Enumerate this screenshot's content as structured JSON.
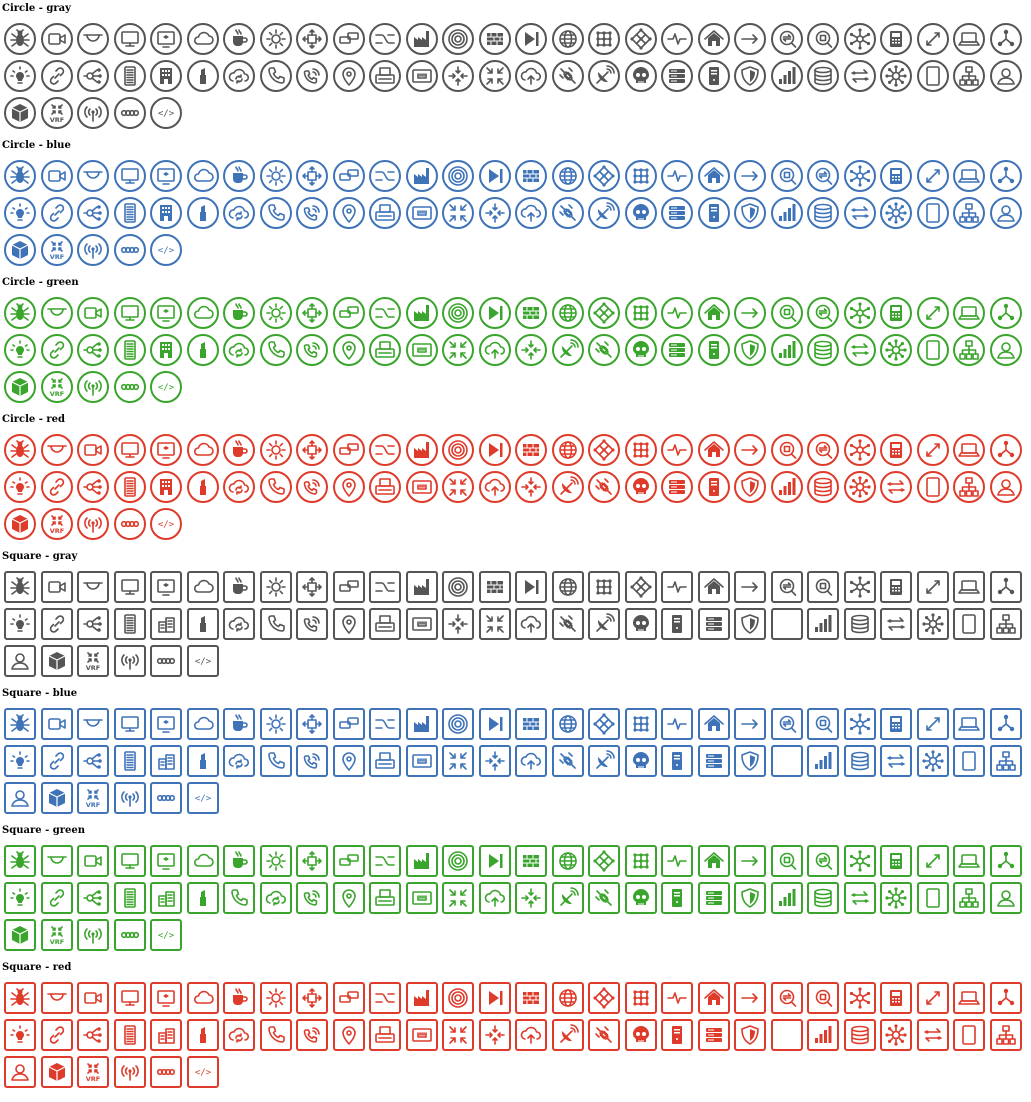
{
  "colors": {
    "gray": "#555555",
    "blue": "#3f73b8",
    "green": "#3aa52c",
    "red": "#de3b2b"
  },
  "sections": [
    {
      "title": "Circle - gray",
      "shape": "circle",
      "color": "gray",
      "icons": [
        "bug-icon",
        "video-camera-icon",
        "ceiling-dome-icon",
        "monitor-icon",
        "display-screen-icon",
        "cloud-icon",
        "coffee-cup-icon",
        "gear-icon",
        "arrows-out-icon",
        "chat-bubbles-icon",
        "crossover-icon",
        "factory-icon",
        "target-rings-icon",
        "firewall-icon",
        "play-next-icon",
        "globe-icon",
        "grid-nodes-icon",
        "diamond-nodes-icon",
        "pulse-icon",
        "home-icon",
        "arrow-right-icon",
        "exchange-icon",
        "focus-square-icon",
        "hub-icon",
        "phone-desk-icon",
        "diagonal-arrows-icon",
        "laptop-icon",
        "tri-nodes-icon",
        "lightbulb-icon",
        "link-icon",
        "share-nodes-icon",
        "server-rack-icon",
        "building-icon",
        "lipstick-icon",
        "cloud-sync-icon",
        "phone-icon",
        "wifi-phone-icon",
        "map-pin-icon",
        "printer-icon",
        "patch-panel-icon",
        "arrows-in-icon",
        "compress-icon",
        "cloud-upload-icon",
        "satellite-icon",
        "satellite-dish-icon",
        "skull-icon",
        "server-stack-icon",
        "tower-server-icon",
        "shield-icon",
        "signal-bars-icon",
        "database-icon",
        "swap-arrows-icon",
        "network-star-icon",
        "tablet-icon",
        "org-chart-icon",
        "user-icon",
        "cube-icon",
        "vrf-icon",
        "radio-tower-icon",
        "chain-icon",
        "code-icon"
      ]
    },
    {
      "title": "Circle - blue",
      "shape": "circle",
      "color": "blue",
      "icons": [
        "bug-icon",
        "video-camera-icon",
        "ceiling-dome-icon",
        "monitor-icon",
        "display-screen-icon",
        "cloud-icon",
        "coffee-cup-icon",
        "gear-icon",
        "arrows-out-icon",
        "chat-bubbles-icon",
        "crossover-icon",
        "factory-icon",
        "target-rings-icon",
        "play-next-icon",
        "firewall-icon",
        "globe-icon",
        "diamond-nodes-icon",
        "grid-nodes-icon",
        "pulse-icon",
        "home-icon",
        "arrow-right-icon",
        "focus-square-icon",
        "exchange-icon",
        "hub-icon",
        "phone-desk-icon",
        "diagonal-arrows-icon",
        "laptop-icon",
        "tri-nodes-icon",
        "lightbulb-icon",
        "link-icon",
        "share-nodes-icon",
        "server-rack-icon",
        "building-icon",
        "lipstick-icon",
        "cloud-sync-icon",
        "phone-icon",
        "wifi-phone-icon",
        "map-pin-icon",
        "printer-icon",
        "patch-panel-icon",
        "compress-icon",
        "arrows-in-icon",
        "cloud-upload-icon",
        "satellite-icon",
        "satellite-dish-icon",
        "skull-icon",
        "server-stack-icon",
        "tower-server-icon",
        "shield-icon",
        "signal-bars-icon",
        "database-icon",
        "swap-arrows-icon",
        "network-star-icon",
        "tablet-icon",
        "org-chart-icon",
        "user-icon",
        "cube-icon",
        "vrf-icon",
        "radio-tower-icon",
        "chain-icon",
        "code-icon"
      ]
    },
    {
      "title": "Circle - green",
      "shape": "circle",
      "color": "green",
      "icons": [
        "bug-icon",
        "ceiling-dome-icon",
        "video-camera-icon",
        "monitor-icon",
        "display-screen-icon",
        "cloud-icon",
        "coffee-cup-icon",
        "gear-icon",
        "arrows-out-icon",
        "chat-bubbles-icon",
        "crossover-icon",
        "factory-icon",
        "target-rings-icon",
        "play-next-icon",
        "firewall-icon",
        "globe-icon",
        "diamond-nodes-icon",
        "grid-nodes-icon",
        "pulse-icon",
        "home-icon",
        "arrow-right-icon",
        "focus-square-icon",
        "exchange-icon",
        "hub-icon",
        "phone-desk-icon",
        "diagonal-arrows-icon",
        "laptop-icon",
        "tri-nodes-icon",
        "lightbulb-icon",
        "link-icon",
        "share-nodes-icon",
        "server-rack-icon",
        "building-icon",
        "lipstick-icon",
        "cloud-sync-icon",
        "phone-icon",
        "wifi-phone-icon",
        "map-pin-icon",
        "printer-icon",
        "patch-panel-icon",
        "compress-icon",
        "cloud-upload-icon",
        "arrows-in-icon",
        "satellite-dish-icon",
        "satellite-icon",
        "skull-icon",
        "server-stack-icon",
        "tower-server-icon",
        "shield-icon",
        "signal-bars-icon",
        "database-icon",
        "swap-arrows-icon",
        "network-star-icon",
        "tablet-icon",
        "org-chart-icon",
        "user-icon",
        "cube-icon",
        "vrf-icon",
        "radio-tower-icon",
        "chain-icon",
        "code-icon"
      ]
    },
    {
      "title": "Circle - red",
      "shape": "circle",
      "color": "red",
      "icons": [
        "bug-icon",
        "ceiling-dome-icon",
        "video-camera-icon",
        "monitor-icon",
        "display-screen-icon",
        "cloud-icon",
        "coffee-cup-icon",
        "gear-icon",
        "arrows-out-icon",
        "chat-bubbles-icon",
        "crossover-icon",
        "factory-icon",
        "target-rings-icon",
        "play-next-icon",
        "firewall-icon",
        "globe-icon",
        "diamond-nodes-icon",
        "grid-nodes-icon",
        "pulse-icon",
        "home-icon",
        "arrow-right-icon",
        "focus-square-icon",
        "exchange-icon",
        "hub-icon",
        "phone-desk-icon",
        "diagonal-arrows-icon",
        "laptop-icon",
        "tri-nodes-icon",
        "lightbulb-icon",
        "link-icon",
        "share-nodes-icon",
        "server-rack-icon",
        "building-icon",
        "lipstick-icon",
        "cloud-sync-icon",
        "phone-icon",
        "wifi-phone-icon",
        "map-pin-icon",
        "printer-icon",
        "patch-panel-icon",
        "compress-icon",
        "cloud-upload-icon",
        "arrows-in-icon",
        "satellite-dish-icon",
        "satellite-icon",
        "skull-icon",
        "server-stack-icon",
        "tower-server-icon",
        "shield-icon",
        "signal-bars-icon",
        "database-icon",
        "network-star-icon",
        "swap-arrows-icon",
        "tablet-icon",
        "org-chart-icon",
        "user-icon",
        "cube-icon",
        "vrf-icon",
        "radio-tower-icon",
        "chain-icon",
        "code-icon"
      ]
    },
    {
      "title": "Square - gray",
      "shape": "square",
      "color": "gray",
      "icons": [
        "bug-icon",
        "video-camera-icon",
        "ceiling-dome-icon",
        "monitor-icon",
        "display-screen-icon",
        "cloud-icon",
        "coffee-cup-icon",
        "gear-icon",
        "arrows-out-icon",
        "chat-bubbles-icon",
        "crossover-icon",
        "factory-icon",
        "target-rings-icon",
        "firewall-icon",
        "play-next-icon",
        "globe-icon",
        "grid-nodes-icon",
        "diamond-nodes-icon",
        "pulse-icon",
        "home-icon",
        "arrow-right-icon",
        "exchange-icon",
        "focus-square-icon",
        "hub-icon",
        "phone-desk-icon",
        "diagonal-arrows-icon",
        "laptop-icon",
        "tri-nodes-icon",
        "lightbulb-icon",
        "link-icon",
        "share-nodes-icon",
        "server-rack-icon",
        "buildings-icon",
        "lipstick-icon",
        "cloud-sync-icon",
        "phone-icon",
        "wifi-phone-icon",
        "map-pin-icon",
        "printer-icon",
        "patch-panel-icon",
        "arrows-in-icon",
        "compress-icon",
        "cloud-upload-icon",
        "satellite-icon",
        "satellite-dish-icon",
        "skull-icon",
        "tower-server-icon",
        "server-stack-icon",
        "shield-icon",
        "empty-icon",
        "signal-bars-icon",
        "database-icon",
        "swap-arrows-icon",
        "network-star-icon",
        "tablet-icon",
        "org-chart-icon",
        "user-icon",
        "cube-icon",
        "vrf-icon",
        "radio-tower-icon",
        "chain-icon",
        "code-icon"
      ]
    },
    {
      "title": "Square - blue",
      "shape": "square",
      "color": "blue",
      "icons": [
        "bug-icon",
        "video-camera-icon",
        "ceiling-dome-icon",
        "monitor-icon",
        "display-screen-icon",
        "cloud-icon",
        "coffee-cup-icon",
        "gear-icon",
        "arrows-out-icon",
        "chat-bubbles-icon",
        "crossover-icon",
        "factory-icon",
        "target-rings-icon",
        "play-next-icon",
        "firewall-icon",
        "globe-icon",
        "diamond-nodes-icon",
        "grid-nodes-icon",
        "pulse-icon",
        "home-icon",
        "arrow-right-icon",
        "exchange-icon",
        "focus-square-icon",
        "hub-icon",
        "phone-desk-icon",
        "diagonal-arrows-icon",
        "laptop-icon",
        "tri-nodes-icon",
        "lightbulb-icon",
        "link-icon",
        "share-nodes-icon",
        "server-rack-icon",
        "buildings-icon",
        "lipstick-icon",
        "cloud-sync-icon",
        "phone-icon",
        "wifi-phone-icon",
        "map-pin-icon",
        "printer-icon",
        "patch-panel-icon",
        "compress-icon",
        "arrows-in-icon",
        "cloud-upload-icon",
        "satellite-icon",
        "satellite-dish-icon",
        "skull-icon",
        "tower-server-icon",
        "server-stack-icon",
        "shield-icon",
        "empty-icon",
        "signal-bars-icon",
        "database-icon",
        "swap-arrows-icon",
        "network-star-icon",
        "tablet-icon",
        "org-chart-icon",
        "user-icon",
        "cube-icon",
        "vrf-icon",
        "radio-tower-icon",
        "chain-icon",
        "code-icon"
      ]
    },
    {
      "title": "Square - green",
      "shape": "square",
      "color": "green",
      "icons": [
        "bug-icon",
        "ceiling-dome-icon",
        "video-camera-icon",
        "monitor-icon",
        "display-screen-icon",
        "cloud-icon",
        "coffee-cup-icon",
        "gear-icon",
        "arrows-out-icon",
        "chat-bubbles-icon",
        "crossover-icon",
        "factory-icon",
        "target-rings-icon",
        "play-next-icon",
        "firewall-icon",
        "globe-icon",
        "diamond-nodes-icon",
        "grid-nodes-icon",
        "pulse-icon",
        "home-icon",
        "arrow-right-icon",
        "focus-square-icon",
        "exchange-icon",
        "hub-icon",
        "phone-desk-icon",
        "diagonal-arrows-icon",
        "laptop-icon",
        "tri-nodes-icon",
        "lightbulb-icon",
        "link-icon",
        "share-nodes-icon",
        "server-rack-icon",
        "buildings-icon",
        "lipstick-icon",
        "phone-icon",
        "cloud-sync-icon",
        "wifi-phone-icon",
        "map-pin-icon",
        "printer-icon",
        "patch-panel-icon",
        "compress-icon",
        "cloud-upload-icon",
        "arrows-in-icon",
        "satellite-dish-icon",
        "satellite-icon",
        "skull-icon",
        "tower-server-icon",
        "server-stack-icon",
        "shield-icon",
        "signal-bars-icon",
        "database-icon",
        "swap-arrows-icon",
        "network-star-icon",
        "tablet-icon",
        "org-chart-icon",
        "user-icon",
        "cube-icon",
        "vrf-icon",
        "radio-tower-icon",
        "chain-icon",
        "code-icon"
      ]
    },
    {
      "title": "Square - red",
      "shape": "square",
      "color": "red",
      "icons": [
        "bug-icon",
        "ceiling-dome-icon",
        "video-camera-icon",
        "monitor-icon",
        "display-screen-icon",
        "cloud-icon",
        "coffee-cup-icon",
        "gear-icon",
        "arrows-out-icon",
        "chat-bubbles-icon",
        "crossover-icon",
        "factory-icon",
        "target-rings-icon",
        "play-next-icon",
        "firewall-icon",
        "globe-icon",
        "diamond-nodes-icon",
        "grid-nodes-icon",
        "pulse-icon",
        "home-icon",
        "arrow-right-icon",
        "exchange-icon",
        "focus-square-icon",
        "hub-icon",
        "phone-desk-icon",
        "diagonal-arrows-icon",
        "laptop-icon",
        "tri-nodes-icon",
        "lightbulb-icon",
        "link-icon",
        "share-nodes-icon",
        "server-rack-icon",
        "buildings-icon",
        "lipstick-icon",
        "cloud-sync-icon",
        "phone-icon",
        "wifi-phone-icon",
        "map-pin-icon",
        "printer-icon",
        "patch-panel-icon",
        "compress-icon",
        "arrows-in-icon",
        "cloud-upload-icon",
        "satellite-dish-icon",
        "satellite-icon",
        "skull-icon",
        "tower-server-icon",
        "server-stack-icon",
        "shield-icon",
        "empty-icon",
        "signal-bars-icon",
        "database-icon",
        "network-star-icon",
        "swap-arrows-icon",
        "tablet-icon",
        "org-chart-icon",
        "user-icon",
        "cube-icon",
        "vrf-icon",
        "radio-tower-icon",
        "chain-icon",
        "code-icon"
      ]
    }
  ],
  "vrf_label": "VRF"
}
